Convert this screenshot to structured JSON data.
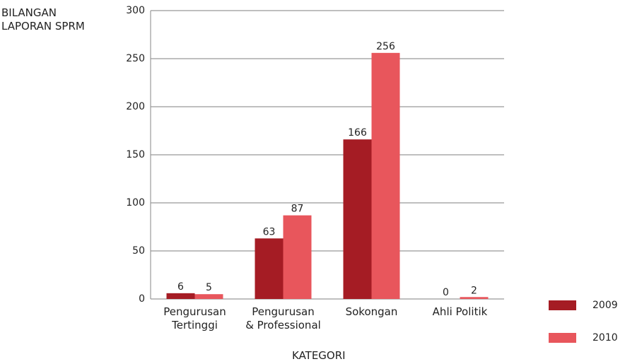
{
  "chart_data": {
    "type": "bar",
    "y_label": "BILANGAN\nLAPORAN SPRM",
    "x_label": "KATEGORI",
    "categories": [
      "Pengurusan\nTertinggi",
      "Pengurusan\n& Professional",
      "Sokongan",
      "Ahli Politik"
    ],
    "series": [
      {
        "name": "2009",
        "color": "#a51c24",
        "values": [
          6,
          63,
          166,
          0
        ]
      },
      {
        "name": "2010",
        "color": "#e8565c",
        "values": [
          5,
          87,
          256,
          2
        ]
      }
    ],
    "ylim": [
      0,
      300
    ],
    "yticks": [
      0,
      50,
      100,
      150,
      200,
      250,
      300
    ],
    "grid": true,
    "legend": "lower right"
  }
}
